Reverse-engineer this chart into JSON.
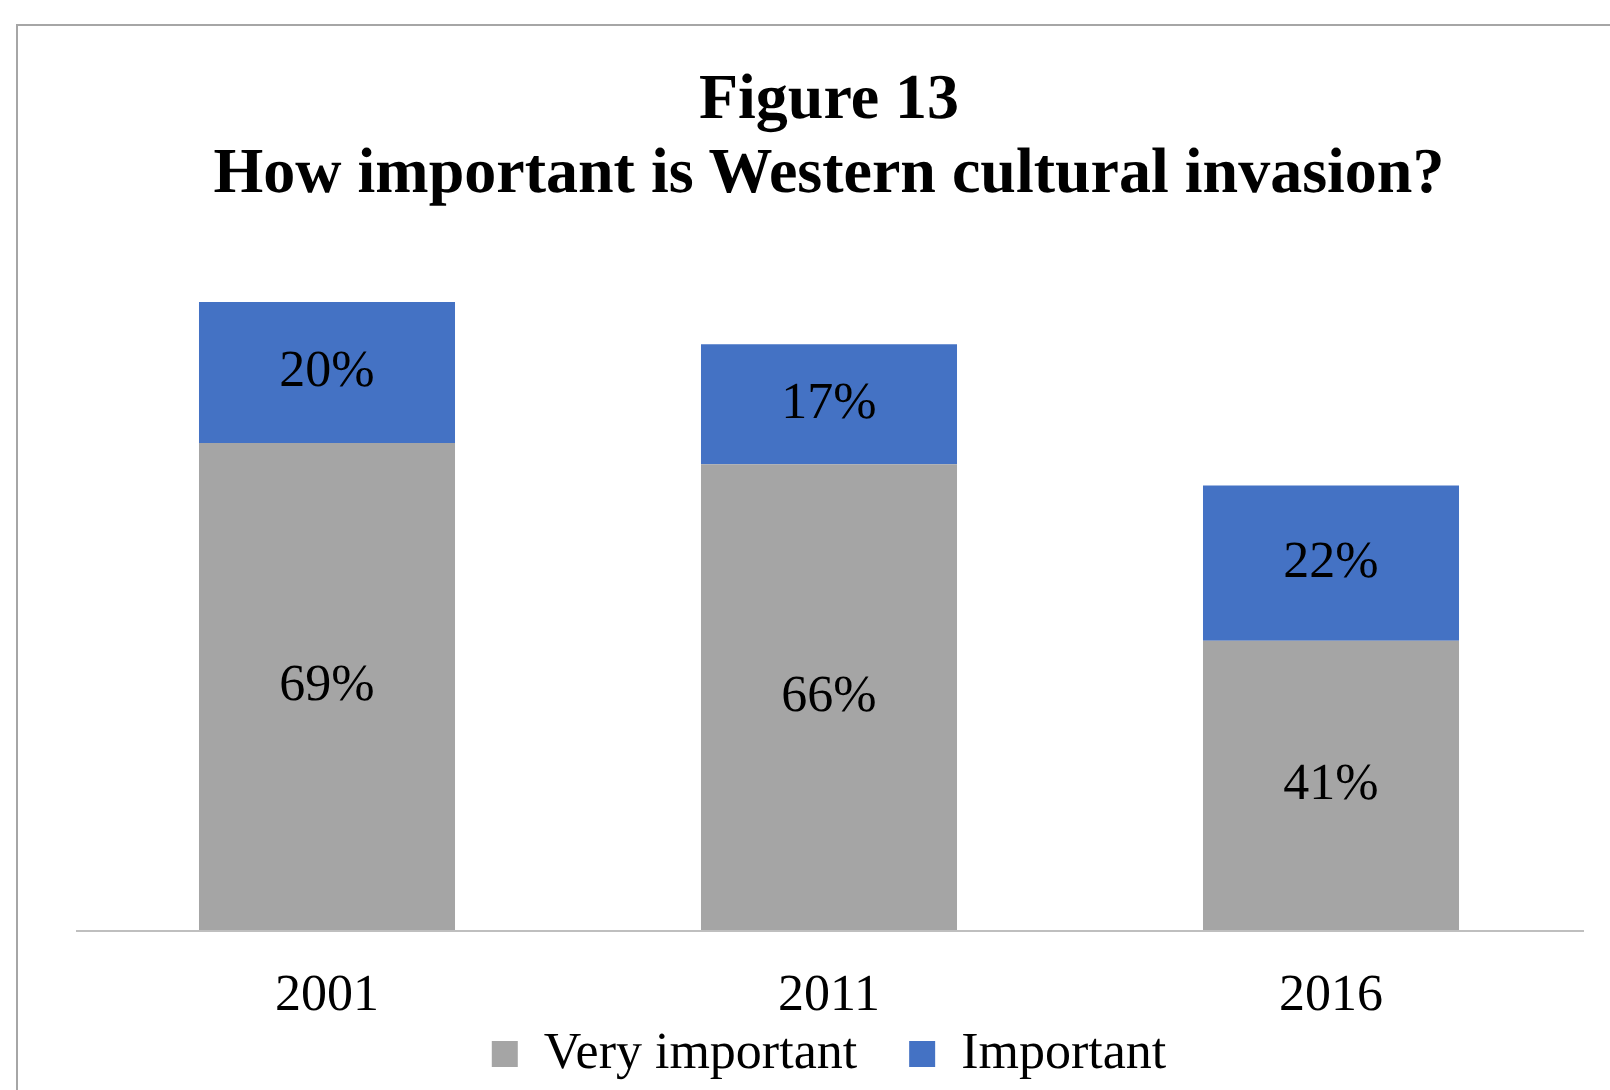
{
  "chart_data": {
    "type": "bar",
    "title": "Figure 13",
    "subtitle": "How important is Western cultural invasion?",
    "categories": [
      "2001",
      "2011",
      "2016"
    ],
    "series": [
      {
        "name": "Very important",
        "color": "#a5a5a5",
        "values": [
          69,
          66,
          41
        ],
        "value_labels": [
          "69%",
          "66%",
          "41%"
        ]
      },
      {
        "name": "Important",
        "color": "#4472c4",
        "values": [
          20,
          17,
          22
        ],
        "value_labels": [
          "20%",
          "17%",
          "22%"
        ]
      }
    ],
    "stacked": true,
    "legend": "bottom",
    "tick_labels": "x"
  }
}
